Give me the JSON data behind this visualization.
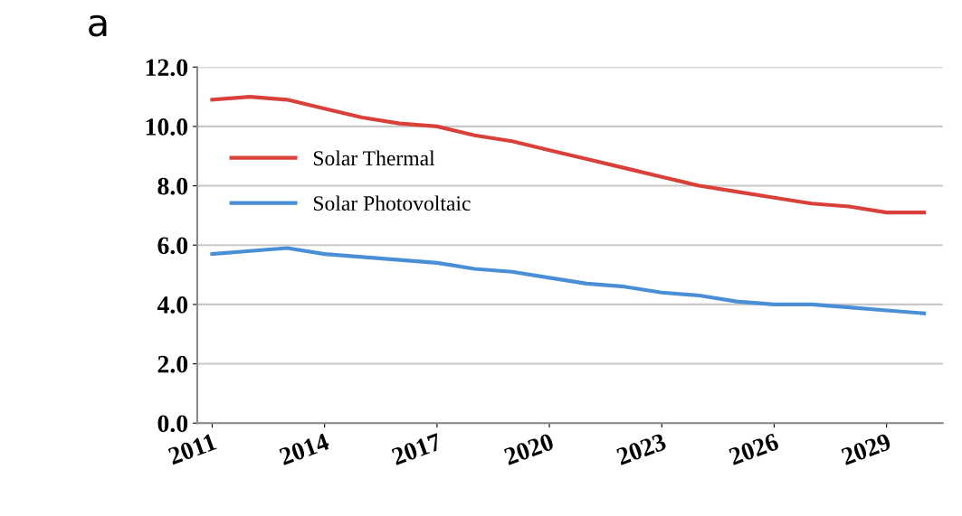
{
  "chart_data": {
    "type": "line",
    "title": "a",
    "x": [
      2011,
      2012,
      2013,
      2014,
      2015,
      2016,
      2017,
      2018,
      2019,
      2020,
      2021,
      2022,
      2023,
      2024,
      2025,
      2026,
      2027,
      2028,
      2029,
      2030
    ],
    "series": [
      {
        "name": "Solar Thermal",
        "color": "#d9403a",
        "values": [
          10.9,
          11.0,
          10.9,
          10.6,
          10.3,
          10.1,
          10.0,
          9.7,
          9.5,
          9.2,
          8.9,
          8.6,
          8.3,
          8.0,
          7.8,
          7.6,
          7.4,
          7.3,
          7.1,
          7.1
        ]
      },
      {
        "name": "Solar Photovoltaic",
        "color": "#4a8fd6",
        "values": [
          5.7,
          5.8,
          5.9,
          5.7,
          5.6,
          5.5,
          5.4,
          5.2,
          5.1,
          4.9,
          4.7,
          4.6,
          4.4,
          4.3,
          4.1,
          4.0,
          4.0,
          3.9,
          3.8,
          3.7
        ]
      }
    ],
    "xlim": [
      2010.6,
      2030.5
    ],
    "xticks": [
      2011,
      2014,
      2017,
      2020,
      2023,
      2026,
      2029
    ],
    "ylim": [
      0,
      12
    ],
    "yticks": [
      {
        "value": 0,
        "label": "0.0"
      },
      {
        "value": 2,
        "label": "2.0"
      },
      {
        "value": 4,
        "label": "4.0"
      },
      {
        "value": 6,
        "label": "6.0"
      },
      {
        "value": 8,
        "label": "8.0"
      },
      {
        "value": 10,
        "label": "10.0"
      },
      {
        "value": 12,
        "label": "12.0"
      }
    ],
    "grid": "y",
    "legend": "top left",
    "marker": "none",
    "line_style": "solid"
  }
}
